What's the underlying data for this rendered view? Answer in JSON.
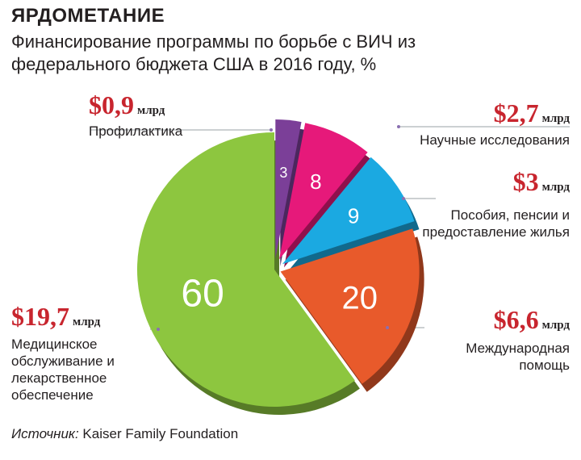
{
  "header": {
    "kicker": "ЯРДОМЕТАНИЕ",
    "subtitle": "Финансирование программы по борьбе с ВИЧ из федерального бюджета США в 2016 году, %"
  },
  "chart_data": {
    "type": "pie",
    "title": "Финансирование программы по борьбе с ВИЧ из федерального бюджета США в 2016 году, %",
    "unit": "%",
    "slices": [
      {
        "label": "Профилактика",
        "value": 3,
        "amount": "$0,9",
        "amount_unit": "млрд",
        "color": "#7b3f98"
      },
      {
        "label": "Научные исследования",
        "value": 8,
        "amount": "$2,7",
        "amount_unit": "млрд",
        "color": "#e6197a"
      },
      {
        "label": "Пособия, пенсии и предоставление жилья",
        "value": 9,
        "amount": "$3",
        "amount_unit": "млрд",
        "color": "#1ba9e1"
      },
      {
        "label": "Международная помощь",
        "value": 20,
        "amount": "$6,6",
        "amount_unit": "млрд",
        "color": "#e85a2b"
      },
      {
        "label": "Медицинское обслуживание и лекарственное обеспечение",
        "value": 60,
        "amount": "$19,7",
        "amount_unit": "млрд",
        "color": "#8dc63f"
      }
    ]
  },
  "footer": {
    "source_label": "Источник:",
    "source_value": "Kaiser Family Foundation"
  }
}
